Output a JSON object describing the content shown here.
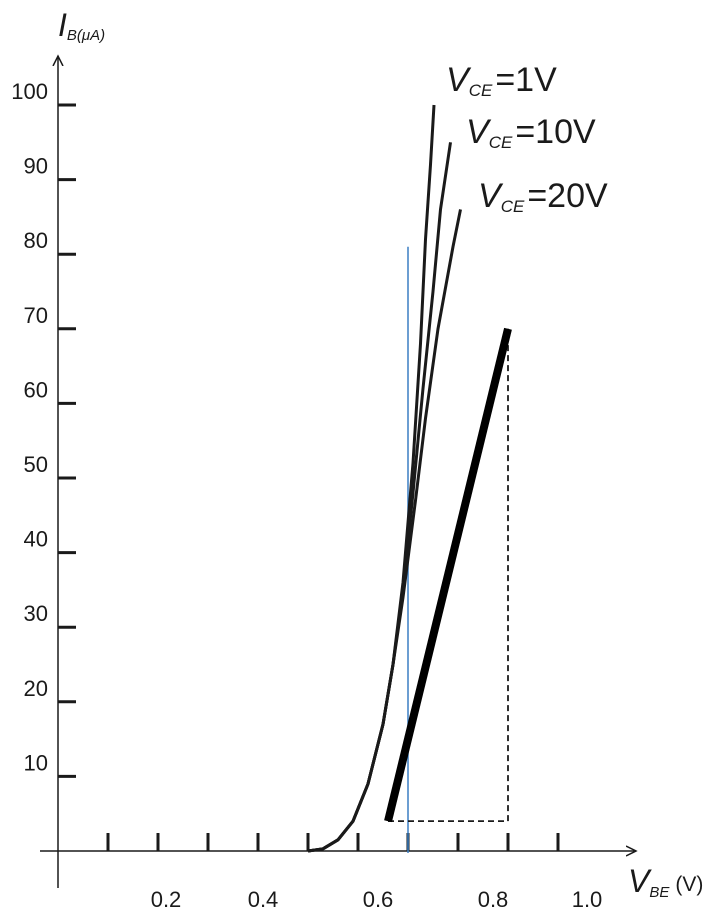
{
  "chart_data": {
    "type": "line",
    "xlabel": {
      "main": "V",
      "sub": "BE",
      "unit": "(V)"
    },
    "ylabel": {
      "main": "I",
      "sub": "B(μA)"
    },
    "xlim": [
      0,
      1.15
    ],
    "ylim": [
      0,
      105
    ],
    "x_ticks": [
      0.2,
      0.4,
      0.6,
      0.8,
      1.0
    ],
    "x_tick_labels": [
      "0.2",
      "0.4",
      "0.6",
      "0.8",
      "1.0"
    ],
    "x_tick_marks": [
      0.1,
      0.2,
      0.3,
      0.4,
      0.5,
      0.6,
      0.7,
      0.8,
      0.9,
      1.0
    ],
    "y_ticks": [
      10,
      20,
      30,
      40,
      50,
      60,
      70,
      80,
      90,
      100
    ],
    "y_tick_labels": [
      "10",
      "20",
      "30",
      "40",
      "50",
      "60",
      "70",
      "80",
      "90",
      "100"
    ],
    "series": [
      {
        "name": "VCE=1V",
        "label_main": "V",
        "label_sub": "CE",
        "label_value": "=1V",
        "points": [
          [
            0.5,
            0
          ],
          [
            0.53,
            0.3
          ],
          [
            0.56,
            1.5
          ],
          [
            0.59,
            4
          ],
          [
            0.62,
            9
          ],
          [
            0.65,
            17
          ],
          [
            0.67,
            25
          ],
          [
            0.69,
            36
          ],
          [
            0.71,
            52
          ],
          [
            0.725,
            68
          ],
          [
            0.735,
            82
          ],
          [
            0.745,
            92
          ],
          [
            0.752,
            100
          ]
        ]
      },
      {
        "name": "VCE=10V",
        "label_main": "V",
        "label_sub": "CE",
        "label_value": "=10V",
        "points": [
          [
            0.5,
            0
          ],
          [
            0.53,
            0.3
          ],
          [
            0.56,
            1.5
          ],
          [
            0.59,
            4
          ],
          [
            0.62,
            9
          ],
          [
            0.65,
            17
          ],
          [
            0.67,
            25
          ],
          [
            0.69,
            35
          ],
          [
            0.71,
            48
          ],
          [
            0.73,
            62
          ],
          [
            0.75,
            75
          ],
          [
            0.765,
            86
          ],
          [
            0.785,
            95
          ]
        ]
      },
      {
        "name": "VCE=20V",
        "label_main": "V",
        "label_sub": "CE",
        "label_value": "=20V",
        "points": [
          [
            0.5,
            0
          ],
          [
            0.53,
            0.3
          ],
          [
            0.56,
            1.5
          ],
          [
            0.59,
            4
          ],
          [
            0.62,
            9
          ],
          [
            0.65,
            17
          ],
          [
            0.67,
            25
          ],
          [
            0.69,
            34
          ],
          [
            0.715,
            47
          ],
          [
            0.735,
            58
          ],
          [
            0.76,
            70
          ],
          [
            0.79,
            81
          ],
          [
            0.805,
            86
          ]
        ]
      }
    ],
    "tangent_line": {
      "from": [
        0.66,
        4
      ],
      "to": [
        0.9,
        70
      ]
    },
    "vertical_marker": {
      "x": 0.7,
      "ymax": 81,
      "color": "#3b7fc4"
    },
    "dashed_triangle": [
      [
        0.66,
        4
      ],
      [
        0.9,
        4
      ],
      [
        0.9,
        70
      ]
    ]
  }
}
